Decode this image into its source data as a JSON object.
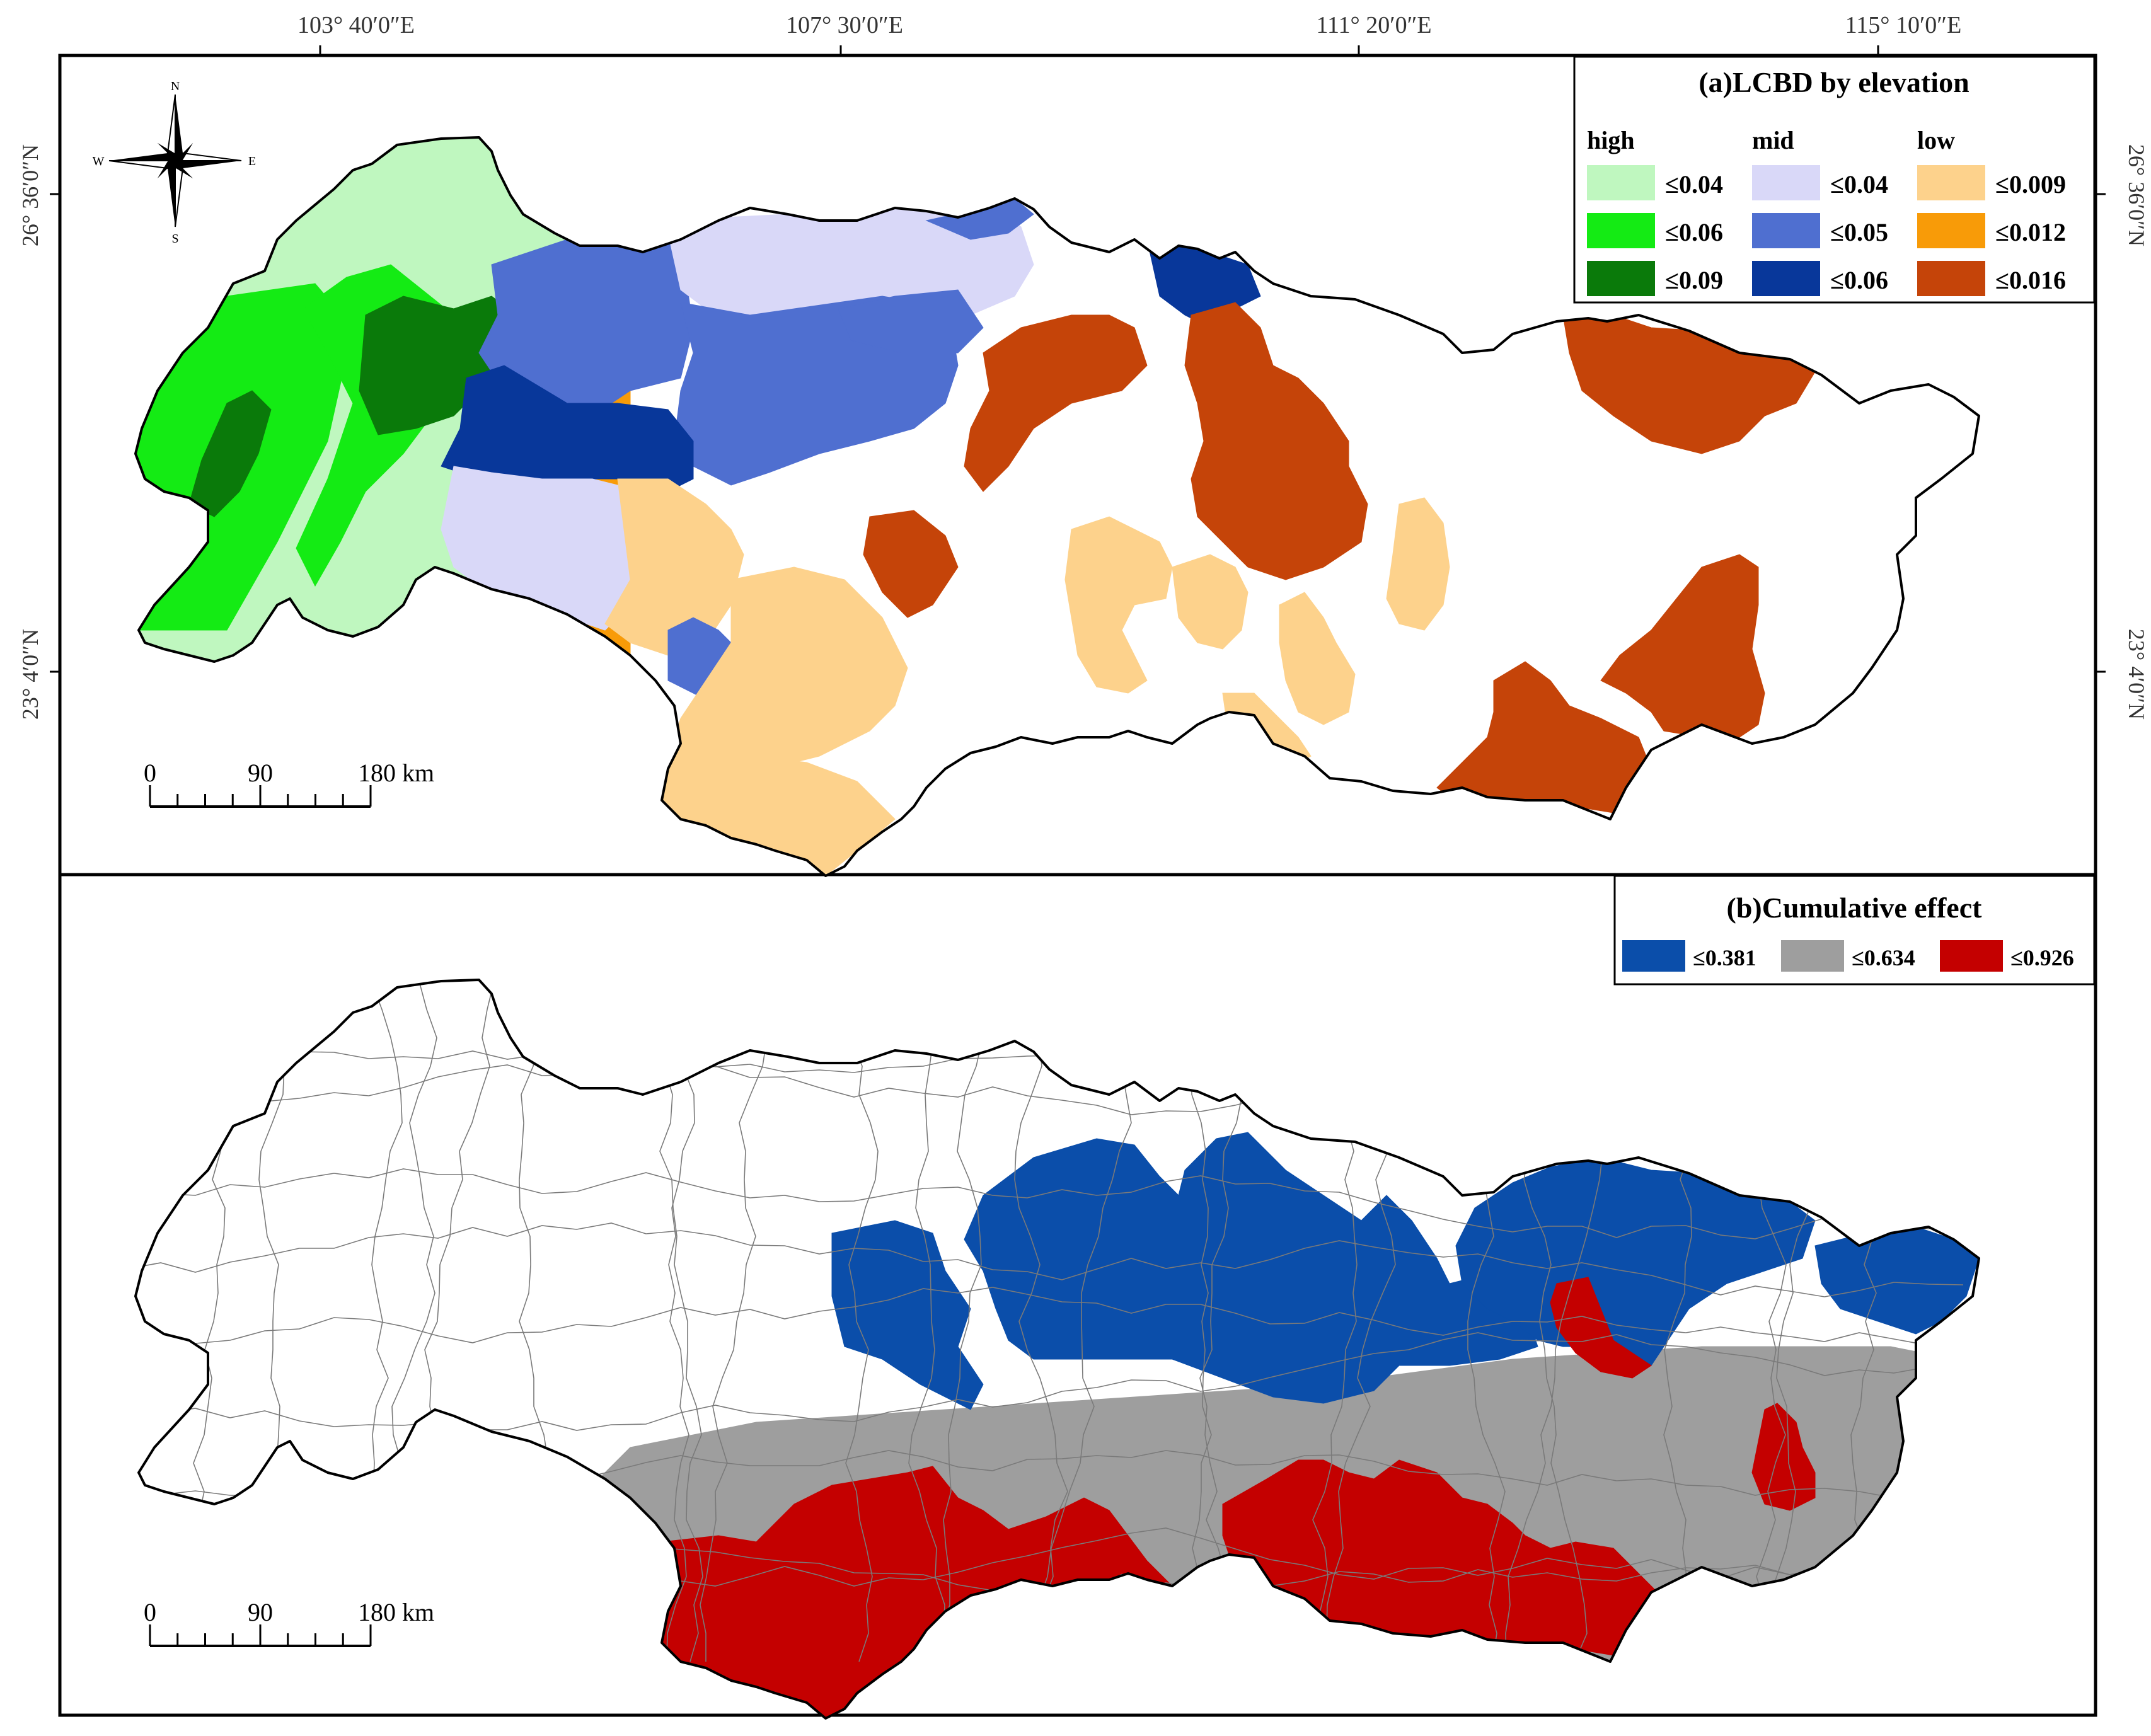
{
  "lon_labels": [
    "103° 40′0″E",
    "107° 30′0″E",
    "111° 20′0″E",
    "115° 10′0″E"
  ],
  "lat_labels": [
    "26° 36′0″N",
    "23° 4′0″N"
  ],
  "compass": {
    "n": "N",
    "s": "S",
    "e": "E",
    "w": "W"
  },
  "scale_bar": {
    "labels": [
      "0",
      "90",
      "180 km"
    ]
  },
  "panel_a": {
    "title": "(a)LCBD by elevation",
    "groups": [
      {
        "label": "high",
        "items": [
          {
            "label": "≤0.04",
            "color": "#BFF7BF"
          },
          {
            "label": "≤0.06",
            "color": "#14EB14"
          },
          {
            "label": "≤0.09",
            "color": "#0A7A0A"
          }
        ]
      },
      {
        "label": "mid",
        "items": [
          {
            "label": "≤0.04",
            "color": "#D9D8F8"
          },
          {
            "label": "≤0.05",
            "color": "#4F6FD0"
          },
          {
            "label": "≤0.06",
            "color": "#08379A"
          }
        ]
      },
      {
        "label": "low",
        "items": [
          {
            "label": "≤0.009",
            "color": "#FDD28C"
          },
          {
            "label": "≤0.012",
            "color": "#F89B08"
          },
          {
            "label": "≤0.016",
            "color": "#C54409"
          }
        ]
      }
    ]
  },
  "panel_b": {
    "title": "(b)Cumulative effect",
    "items": [
      {
        "label": "≤0.381",
        "color": "#0B4EAA"
      },
      {
        "label": "≤0.634",
        "color": "#9E9E9E"
      },
      {
        "label": "≤0.926",
        "color": "#C40000"
      }
    ]
  }
}
